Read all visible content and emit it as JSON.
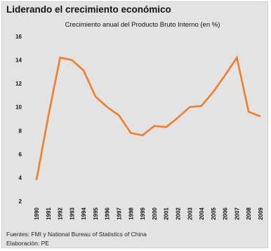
{
  "header": {
    "title": "Liderando el crecimiento económico"
  },
  "footer": {
    "source": "Fuentes: FMI y National Bureau of Statistics of China",
    "credit": "Elaboración: PE"
  },
  "colors": {
    "background": "#e3e3e3",
    "line": "#ee7d2e"
  },
  "chart_data": {
    "type": "line",
    "subtitle": "Crecimiento anual del Producto Bruto Interno (en %)",
    "xlabel": "",
    "ylabel": "",
    "x": [
      "1990",
      "1991",
      "1992",
      "1993",
      "1994",
      "1995",
      "1996",
      "1997",
      "1998",
      "1999",
      "2000",
      "2001",
      "2002",
      "2003",
      "2004",
      "2005",
      "2006",
      "2007",
      "2008",
      "2009"
    ],
    "series": [
      {
        "values": [
          3.8,
          9.2,
          14.2,
          14.0,
          13.1,
          10.9,
          10.0,
          9.3,
          7.8,
          7.6,
          8.4,
          8.3,
          9.1,
          10.0,
          10.1,
          11.3,
          12.7,
          14.2,
          9.6,
          9.2
        ]
      }
    ],
    "ylim": [
      2,
      16
    ],
    "yticks": [
      2,
      4,
      6,
      8,
      10,
      12,
      14,
      16
    ],
    "grid": false,
    "legend": "none"
  }
}
